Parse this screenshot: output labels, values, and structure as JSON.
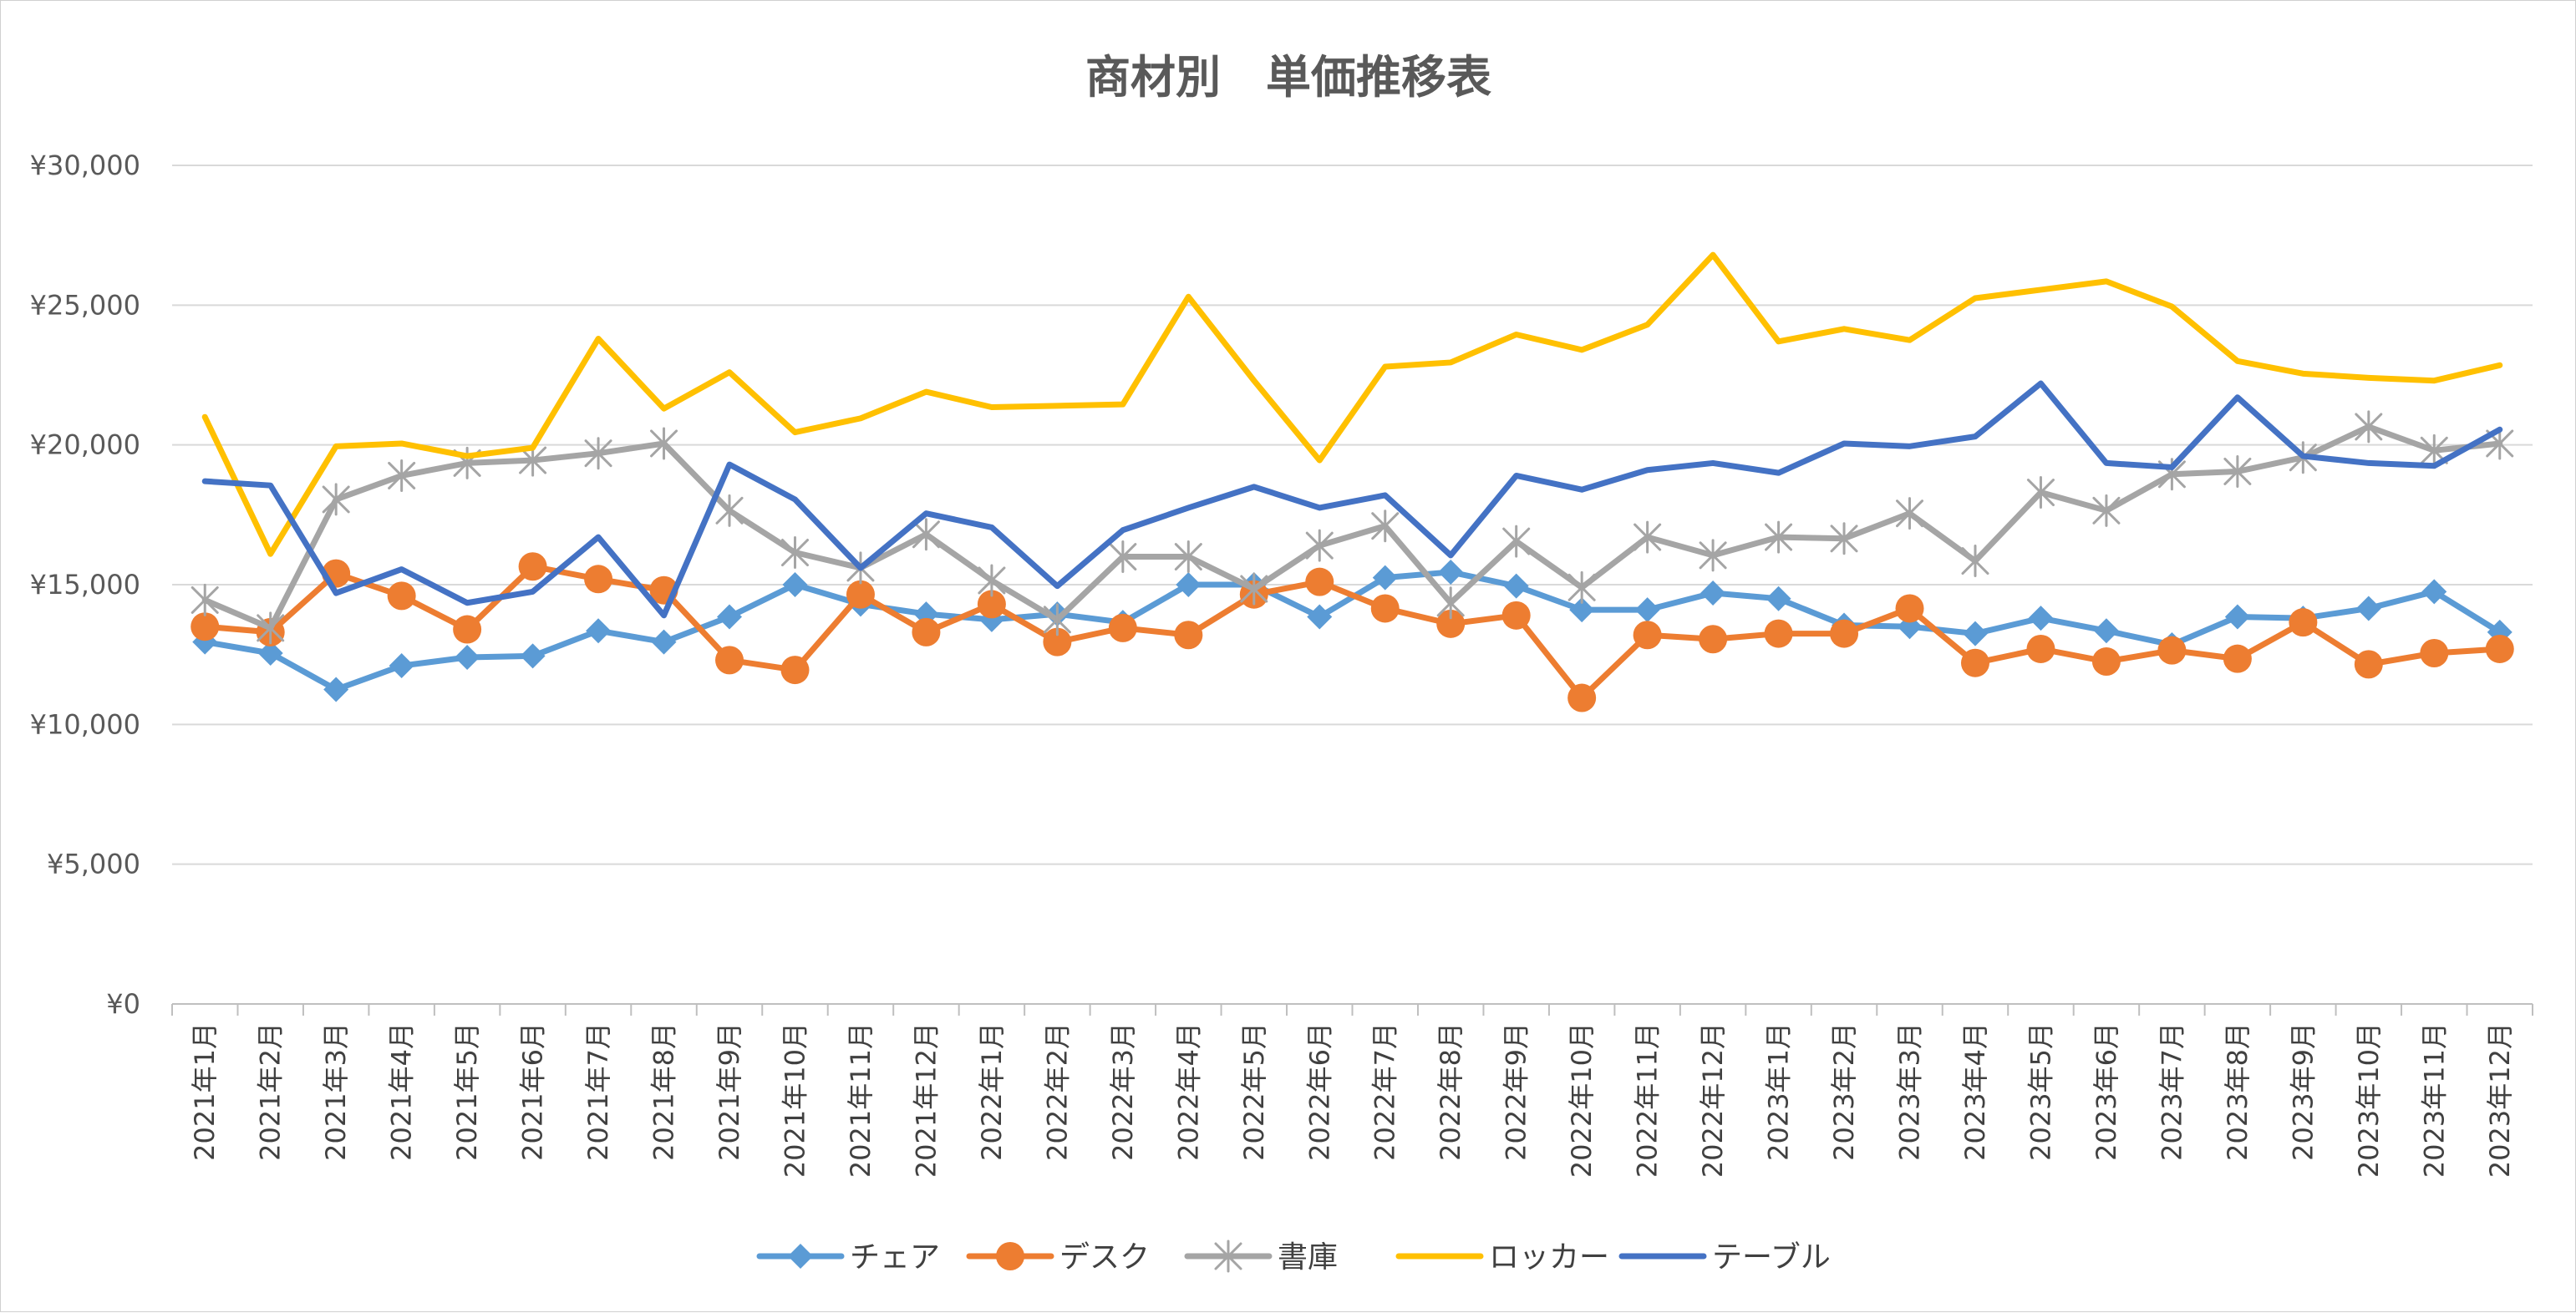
{
  "chart_data": {
    "type": "line",
    "title": "商材別　単価推移表",
    "xlabel": "",
    "ylabel": "",
    "ylim": [
      0,
      30000
    ],
    "yticks": [
      0,
      5000,
      10000,
      15000,
      20000,
      25000,
      30000
    ],
    "ytick_labels": [
      "¥0",
      "¥5,000",
      "¥10,000",
      "¥15,000",
      "¥20,000",
      "¥25,000",
      "¥30,000"
    ],
    "grid": true,
    "legend_position": "bottom",
    "categories": [
      "2021年1月",
      "2021年2月",
      "2021年3月",
      "2021年4月",
      "2021年5月",
      "2021年6月",
      "2021年7月",
      "2021年8月",
      "2021年9月",
      "2021年10月",
      "2021年11月",
      "2021年12月",
      "2022年1月",
      "2022年2月",
      "2022年3月",
      "2022年4月",
      "2022年5月",
      "2022年6月",
      "2022年7月",
      "2022年8月",
      "2022年9月",
      "2022年10月",
      "2022年11月",
      "2022年12月",
      "2023年1月",
      "2023年2月",
      "2023年3月",
      "2023年4月",
      "2023年5月",
      "2023年6月",
      "2023年7月",
      "2023年8月",
      "2023年9月",
      "2023年10月",
      "2023年11月",
      "2023年12月"
    ],
    "series": [
      {
        "name": "チェア",
        "color": "#5b9bd5",
        "marker": "diamond",
        "values": [
          12950,
          12550,
          11250,
          12100,
          12400,
          12450,
          13350,
          12950,
          13850,
          15000,
          14300,
          13950,
          13750,
          13950,
          13650,
          15000,
          15000,
          13850,
          15250,
          15450,
          14950,
          14100,
          14100,
          14700,
          14500,
          13550,
          13500,
          13250,
          13800,
          13350,
          12850,
          13850,
          13800,
          14150,
          14750,
          13300
        ]
      },
      {
        "name": "デスク",
        "color": "#ed7d31",
        "marker": "circle",
        "values": [
          13500,
          13300,
          15400,
          14600,
          13400,
          15650,
          15200,
          14800,
          12300,
          11950,
          14650,
          13300,
          14300,
          12950,
          13450,
          13200,
          14650,
          15100,
          14150,
          13600,
          13900,
          10950,
          13200,
          13050,
          13250,
          13250,
          14150,
          12200,
          12700,
          12250,
          12650,
          12350,
          13650,
          12150,
          12550,
          12700
        ]
      },
      {
        "name": "書庫",
        "color": "#a5a5a5",
        "marker": "star",
        "values": [
          14450,
          13450,
          18050,
          18900,
          19350,
          19450,
          19700,
          20050,
          17650,
          16150,
          15600,
          16800,
          15150,
          13750,
          16000,
          16000,
          14850,
          16400,
          17100,
          14350,
          16550,
          14900,
          16700,
          16050,
          16700,
          16650,
          17550,
          15850,
          18300,
          17650,
          18950,
          19050,
          19550,
          20650,
          19800,
          20050
        ]
      },
      {
        "name": "ロッカー",
        "color": "#ffc000",
        "marker": "none",
        "values": [
          21000,
          16100,
          19950,
          20050,
          19600,
          19900,
          23800,
          21300,
          22600,
          20450,
          20950,
          21900,
          21350,
          21400,
          21450,
          25300,
          22300,
          19450,
          22800,
          22950,
          23950,
          23400,
          24300,
          26800,
          23700,
          24150,
          23750,
          25250,
          25550,
          25850,
          24950,
          23000,
          22550,
          22400,
          22300,
          22850
        ]
      },
      {
        "name": "テーブル",
        "color": "#4472c4",
        "marker": "none",
        "values": [
          18700,
          18550,
          14700,
          15550,
          14350,
          14750,
          16700,
          13900,
          19300,
          18050,
          15600,
          17550,
          17050,
          14950,
          16950,
          17750,
          18500,
          17750,
          18200,
          16050,
          18900,
          18400,
          19100,
          19350,
          19000,
          20050,
          19950,
          20300,
          22200,
          19350,
          19200,
          21700,
          19600,
          19350,
          19250,
          20550
        ]
      }
    ]
  }
}
